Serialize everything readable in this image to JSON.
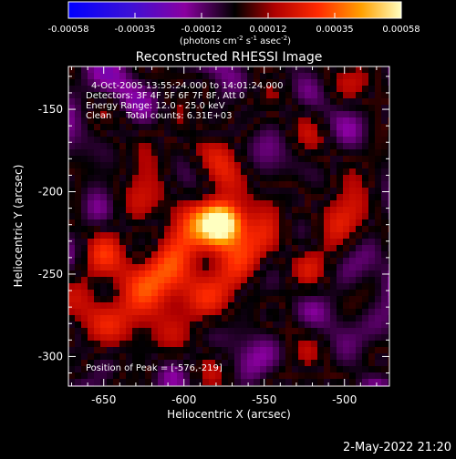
{
  "colorbar": {
    "tick_labels": [
      "-0.00058",
      "-0.00035",
      "-0.00012",
      "0.00012",
      "0.00035",
      "0.00058"
    ],
    "units_text": "(photons cm",
    "units_exp1": "-2",
    "units_mid": " s",
    "units_exp2": "-1",
    "units_end": " asec",
    "units_exp3": "-2",
    "units_close": ")"
  },
  "chart_data": {
    "type": "heatmap",
    "title": "Reconstructed RHESSI Image",
    "xlabel": "Heliocentric X (arcsec)",
    "ylabel": "Heliocentric Y (arcsec)",
    "xlim": [
      -672,
      -472
    ],
    "ylim": [
      -318,
      -124
    ],
    "xticks": [
      -650,
      -600,
      -550,
      -500
    ],
    "yticks": [
      -150,
      -200,
      -250,
      -300
    ],
    "xtick_labels": [
      "-650",
      "-600",
      "-550",
      "-500"
    ],
    "ytick_labels": [
      "-150",
      "-200",
      "-250",
      "-300"
    ],
    "zrange": [
      -0.00058,
      0.00058
    ],
    "peak": [
      -576,
      -219
    ],
    "annotations": {
      "time": "4-Oct-2005 13:55:24.000 to 14:01:24.000",
      "detectors": "Detectors: 3F 4F 5F 6F 7F 8F, Att 0",
      "energy": "Energy Range: 12.0 - 25.0 keV",
      "clean": "Clean     Total counts: 6.31E+03",
      "peak_label": "Position of Peak = [-576,-219]"
    }
  },
  "footer": {
    "date": "2-May-2022 21:20"
  }
}
